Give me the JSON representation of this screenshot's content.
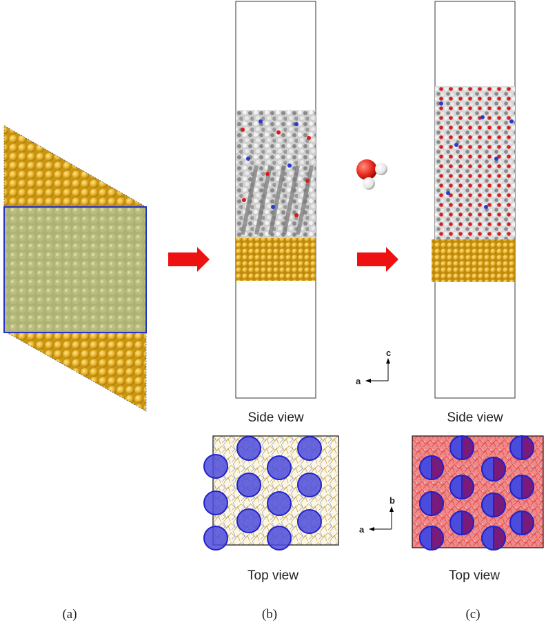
{
  "panels": {
    "a": {
      "label": "(a)"
    },
    "b": {
      "label": "(b)",
      "side_caption": "Side view",
      "top_caption": "Top view"
    },
    "c": {
      "label": "(c)",
      "side_caption": "Side view",
      "top_caption": "Top view"
    }
  },
  "axes_side": {
    "vertical": "c",
    "horizontal": "a"
  },
  "axes_top": {
    "vertical": "b",
    "horizontal": "a"
  },
  "colors": {
    "gold_atom": "#e8b22a",
    "gold_atom_dark": "#b9850d",
    "overlay_fill": "#9fb8c4",
    "overlay_border": "#2233cc",
    "arrow": "#ee1111",
    "carbon": "#8c8c8c",
    "hydrogen": "#f2f2f2",
    "oxygen": "#dd1a1a",
    "nitrogen": "#2a3bcc",
    "column_circle": "#3a3ad8",
    "water_red": "#e8281c"
  }
}
